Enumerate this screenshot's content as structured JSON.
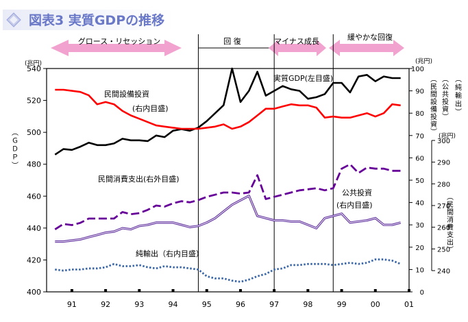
{
  "figure": {
    "title": "図表3 実質GDPの推移"
  },
  "phases": [
    {
      "label": "グロース・リセッション"
    },
    {
      "label": "回 復"
    },
    {
      "label": "マイナス成長"
    },
    {
      "label": "緩やかな回復"
    }
  ],
  "axes": {
    "left_unit": "(兆円)",
    "left_title": "（ＧＤＰ）",
    "left_ticks": [
      "400",
      "420",
      "440",
      "460",
      "480",
      "500",
      "520",
      "540"
    ],
    "right1_unit": "(兆円)",
    "right1_ticks": [
      "0",
      "10",
      "20",
      "30",
      "40",
      "50",
      "60",
      "70",
      "80",
      "90",
      "100"
    ],
    "right1_title_a": "（民間設備投資）",
    "right1_title_b": "（公共投資）",
    "right1_title_c": "（純輸出）",
    "right2_unit": "(兆円)",
    "right2_ticks": [
      "240",
      "250",
      "260",
      "270",
      "280",
      "290",
      "300"
    ],
    "right2_title": "（民間消費支出）",
    "x_ticks": [
      "91",
      "92",
      "93",
      "94",
      "95",
      "96",
      "97",
      "98",
      "99",
      "00",
      "01"
    ]
  },
  "annotations": {
    "gdp": "実質GDP(左目盛)",
    "capex": "民間設備投資",
    "capex_scale": "(右内目盛)",
    "consumption": "民間消費支出(右外目盛)",
    "public": "公共投資",
    "public_scale": "(右内目盛)",
    "netexports": "純輸出（右内目盛）"
  },
  "colors": {
    "title": "#6a78c8",
    "title_bg": "#dfe3f3",
    "phase_arrow": "#f2a2cf",
    "gdp": "#000000",
    "capex": "#ff0000",
    "consumption": "#660099",
    "public": "#5b2a9c",
    "netexports": "#3a67a8"
  },
  "chart_data": {
    "type": "line",
    "title": "図表3 実質GDPの推移",
    "x_unit": "year (quarterly, 1991 – 2001)",
    "x": [
      1990.5,
      1990.75,
      1991,
      1991.25,
      1991.5,
      1991.75,
      1992,
      1992.25,
      1992.5,
      1992.75,
      1993,
      1993.25,
      1993.5,
      1993.75,
      1994,
      1994.25,
      1994.5,
      1994.75,
      1995,
      1995.25,
      1995.5,
      1995.75,
      1996,
      1996.25,
      1996.5,
      1996.75,
      1997,
      1997.25,
      1997.5,
      1997.75,
      1998,
      1998.25,
      1998.5,
      1998.75,
      1999,
      1999.25,
      1999.5,
      1999.75,
      2000,
      2000.25,
      2000.5,
      2000.75
    ],
    "series": [
      {
        "name": "実質GDP(左目盛)",
        "axis": "left",
        "values": [
          486,
          489.5,
          489,
          491,
          493.5,
          492,
          492,
          493,
          496,
          495,
          495,
          494.5,
          498,
          497,
          501,
          502,
          501,
          503,
          507,
          512,
          517,
          540,
          519,
          526,
          538,
          523,
          526,
          529,
          527,
          526,
          521,
          522,
          524,
          531,
          531,
          525,
          535,
          536,
          532,
          535,
          534,
          534
        ]
      },
      {
        "name": "民間設備投資",
        "axis": "right_inner",
        "values": [
          90.5,
          90.5,
          90,
          89.5,
          88,
          84,
          85,
          84,
          81,
          79,
          77.5,
          76,
          74.5,
          74,
          73.5,
          73,
          73,
          73,
          73.5,
          74,
          75,
          73,
          74,
          76,
          79,
          82,
          82,
          83,
          84,
          83.5,
          83.5,
          82.5,
          78,
          78.5,
          78,
          78,
          79,
          80,
          78.5,
          80,
          84,
          83.5
        ]
      },
      {
        "name": "民間消費支出(右外目盛)",
        "axis": "right_outer",
        "values": [
          259,
          261.5,
          261,
          262,
          264,
          264,
          264,
          264,
          267,
          266,
          266.5,
          268,
          270,
          269.5,
          271,
          272,
          271.5,
          272.5,
          274,
          275,
          276,
          276,
          275.5,
          276,
          284,
          273,
          274,
          275,
          276,
          277,
          277.5,
          278,
          277,
          278,
          287,
          289,
          285,
          287.5,
          287,
          287,
          286,
          286
        ]
      },
      {
        "name": "公共投資",
        "axis": "right_inner",
        "values": [
          22.5,
          22.5,
          23,
          23.5,
          24.5,
          25.5,
          26.5,
          27,
          28.5,
          28,
          29.5,
          30,
          31,
          31,
          31,
          30,
          29,
          29.5,
          31,
          33,
          36,
          39,
          41,
          43,
          34,
          33,
          32,
          32,
          31.5,
          31.5,
          30,
          28.5,
          33,
          34,
          35,
          31,
          31.5,
          32,
          33,
          30,
          30,
          31
        ]
      },
      {
        "name": "純輸出（右内目盛）",
        "axis": "right_inner",
        "values": [
          10,
          9.5,
          10,
          10,
          10.5,
          10.5,
          11,
          12.5,
          11.5,
          11.5,
          12,
          11,
          10.5,
          11.5,
          11,
          11,
          10.5,
          10,
          7,
          6,
          6,
          5,
          4.5,
          5.5,
          7,
          8,
          10,
          10.5,
          12,
          12,
          12.5,
          12.5,
          12.5,
          12,
          12.5,
          13,
          12.5,
          13,
          14.5,
          14.5,
          14,
          12.5
        ]
      }
    ],
    "left_axis": {
      "label": "（ＧＤＰ）",
      "unit": "(兆円)",
      "range": [
        400,
        540
      ]
    },
    "right_inner_axis": {
      "unit": "(兆円)",
      "range": [
        0,
        100
      ]
    },
    "right_outer_axis": {
      "unit": "(兆円)",
      "range": [
        240,
        300
      ]
    },
    "phase_boundaries": [
      1994.75,
      1997,
      1998.75
    ],
    "grid": false
  }
}
